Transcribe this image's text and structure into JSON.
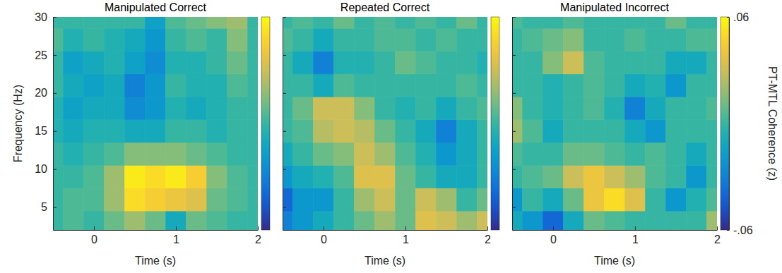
{
  "chart_data": [
    {
      "type": "heatmap",
      "title": "Manipulated Correct",
      "x_label": "Time (s)",
      "y_label": "Frequency (Hz)",
      "x": [
        -0.5,
        -0.25,
        0,
        0.25,
        0.5,
        0.75,
        1,
        1.25,
        1.5,
        1.75,
        2
      ],
      "y": [
        3,
        6,
        9,
        12,
        15,
        18,
        21,
        24,
        27,
        30
      ],
      "z": [
        [
          0,
          0.005,
          0,
          0.01,
          0.02,
          0.01,
          -0.01,
          0.01,
          0.005,
          0,
          0
        ],
        [
          0,
          0.005,
          0.005,
          0.02,
          0.05,
          0.045,
          0.04,
          0.035,
          0.01,
          0.005,
          0
        ],
        [
          0,
          0,
          0.005,
          0.02,
          0.055,
          0.05,
          0.055,
          0.045,
          0.015,
          0.005,
          0
        ],
        [
          0,
          -0.005,
          0,
          0.005,
          0.015,
          0.015,
          0.015,
          0.01,
          0.005,
          0,
          0
        ],
        [
          -0.005,
          -0.01,
          -0.005,
          -0.005,
          -0.01,
          -0.01,
          0,
          0,
          -0.005,
          0,
          0
        ],
        [
          -0.005,
          -0.015,
          -0.01,
          -0.01,
          -0.025,
          -0.02,
          -0.005,
          -0.01,
          -0.005,
          0,
          0
        ],
        [
          0,
          -0.01,
          -0.015,
          -0.01,
          -0.03,
          -0.02,
          0,
          -0.005,
          -0.005,
          0.005,
          0
        ],
        [
          0,
          -0.015,
          -0.01,
          -0.005,
          -0.015,
          -0.025,
          -0.005,
          -0.005,
          0,
          0.01,
          0
        ],
        [
          0.005,
          -0.005,
          0,
          -0.005,
          -0.01,
          -0.02,
          0,
          0.005,
          0,
          0.015,
          0
        ],
        [
          0,
          0,
          0,
          0,
          0,
          -0.015,
          0.005,
          0.01,
          0.015,
          0.02,
          0
        ]
      ],
      "xlim": [
        -0.5,
        2
      ],
      "xticks": [
        0,
        1,
        2
      ],
      "ylim": [
        2,
        30
      ],
      "yticks": [
        5,
        10,
        15,
        20,
        25,
        30
      ],
      "colorbar": {
        "range": [
          -0.06,
          0.06
        ]
      }
    },
    {
      "type": "heatmap",
      "title": "Repeated Correct",
      "x_label": "Time (s)",
      "x": [
        -0.5,
        -0.25,
        0,
        0.25,
        0.5,
        0.75,
        1,
        1.25,
        1.5,
        1.75,
        2
      ],
      "y": [
        3,
        6,
        9,
        12,
        15,
        18,
        21,
        24,
        27,
        30
      ],
      "z": [
        [
          -0.03,
          -0.02,
          -0.01,
          0,
          0.01,
          0.02,
          0.01,
          0.035,
          0.03,
          0.02,
          0.03
        ],
        [
          -0.04,
          -0.02,
          -0.02,
          0,
          0.02,
          0.03,
          0.01,
          0.03,
          0.02,
          0,
          0.01
        ],
        [
          -0.02,
          -0.01,
          -0.005,
          0.005,
          0.035,
          0.035,
          0.01,
          0,
          -0.01,
          -0.01,
          0
        ],
        [
          -0.01,
          0,
          0.01,
          0.015,
          0.03,
          0.02,
          0.005,
          -0.005,
          -0.02,
          -0.01,
          0
        ],
        [
          0,
          0.005,
          0.025,
          0.03,
          0.025,
          0.01,
          0,
          -0.01,
          -0.03,
          -0.01,
          0
        ],
        [
          0,
          0.01,
          0.03,
          0.03,
          0.015,
          0,
          -0.005,
          0,
          -0.01,
          0,
          0.005
        ],
        [
          0,
          0,
          -0.01,
          0.005,
          0,
          0,
          0,
          0,
          0,
          0.005,
          0
        ],
        [
          0,
          -0.01,
          -0.03,
          -0.005,
          -0.005,
          0,
          0.01,
          0.005,
          0,
          0,
          -0.005
        ],
        [
          0.005,
          0,
          -0.01,
          0,
          0,
          0.005,
          0.005,
          0,
          0.005,
          0,
          0
        ],
        [
          0,
          0.005,
          0,
          0.01,
          0,
          0.005,
          0,
          0.005,
          0,
          0.01,
          0
        ]
      ],
      "xlim": [
        -0.5,
        2
      ],
      "xticks": [
        0,
        1,
        2
      ],
      "ylim": [
        2,
        30
      ],
      "yticks": [
        5,
        10,
        15,
        20,
        25,
        30
      ],
      "tick_labels": "x",
      "colorbar": {
        "range": [
          -0.06,
          0.06
        ]
      }
    },
    {
      "type": "heatmap",
      "title": "Manipulated Incorrect",
      "x_label": "Time (s)",
      "x": [
        -0.5,
        -0.25,
        0,
        0.25,
        0.5,
        0.75,
        1,
        1.25,
        1.5,
        1.75,
        2
      ],
      "y": [
        3,
        6,
        9,
        12,
        15,
        18,
        21,
        24,
        27,
        30
      ],
      "z": [
        [
          -0.01,
          -0.02,
          -0.04,
          -0.01,
          0.01,
          0.005,
          0,
          0,
          0,
          0,
          0.02
        ],
        [
          -0.02,
          0,
          -0.01,
          0.01,
          0.04,
          0.05,
          0.035,
          0,
          -0.02,
          -0.005,
          0.005
        ],
        [
          0,
          0.005,
          0.01,
          0.03,
          0.04,
          0.03,
          0.02,
          0.005,
          0,
          -0.02,
          0
        ],
        [
          0.005,
          0,
          0,
          0.01,
          0.01,
          0.005,
          0,
          0.005,
          0,
          -0.01,
          0
        ],
        [
          0.02,
          0.005,
          -0.01,
          0,
          0,
          0,
          -0.01,
          -0.02,
          0,
          0,
          0
        ],
        [
          0.015,
          0,
          -0.005,
          0,
          0.005,
          -0.005,
          -0.03,
          -0.01,
          0,
          0,
          0.005
        ],
        [
          0,
          0,
          -0.005,
          0,
          0.005,
          0,
          -0.01,
          -0.005,
          -0.02,
          0,
          0
        ],
        [
          0,
          0,
          0.015,
          0.03,
          0.005,
          0,
          0,
          0,
          -0.01,
          -0.01,
          0
        ],
        [
          0,
          0.005,
          0.01,
          0.015,
          0,
          0,
          0.005,
          0,
          0,
          0.005,
          0.005
        ],
        [
          0.005,
          0,
          0,
          0.005,
          0,
          0,
          0,
          0,
          0.01,
          0,
          0
        ]
      ],
      "xlim": [
        -0.5,
        2
      ],
      "xticks": [
        0,
        1,
        2
      ],
      "ylim": [
        2,
        30
      ],
      "yticks": [
        5,
        10,
        15,
        20,
        25,
        30
      ],
      "tick_labels": "x",
      "colorbar": {
        "range": [
          -0.06,
          0.06
        ],
        "ticks": [
          {
            "value": 0.06,
            "label": ".06"
          },
          {
            "value": -0.06,
            "label": "-.06"
          }
        ],
        "label": "PT-MTL Coherence (z)"
      }
    }
  ]
}
